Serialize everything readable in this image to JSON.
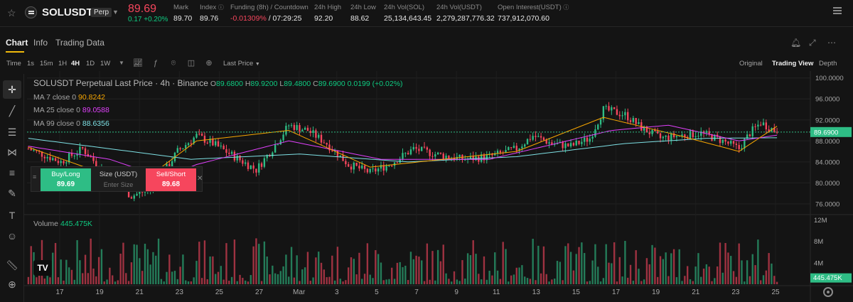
{
  "ticker": {
    "symbol": "SOLUSDT",
    "contract_badge": "Perp",
    "last_price": "89.69",
    "change": "0.17 +0.20%",
    "stats": [
      {
        "label": "Mark",
        "value": "89.70"
      },
      {
        "label": "Index",
        "value": "89.76"
      },
      {
        "label": "Funding (8h) / Countdown",
        "value_rate": "-0.01309%",
        "value_countdown": " / 07:29:25"
      },
      {
        "label": "24h High",
        "value": "92.20"
      },
      {
        "label": "24h Low",
        "value": "88.62"
      },
      {
        "label": "24h Vol(SOL)",
        "value": "25,134,643.45"
      },
      {
        "label": "24h Vol(USDT)",
        "value": "2,279,287,776.32"
      },
      {
        "label": "Open Interest(USDT)",
        "value": "737,912,070.60"
      }
    ]
  },
  "tabs": [
    "Chart",
    "Info",
    "Trading Data"
  ],
  "toolbar": {
    "time_label": "Time",
    "intervals": [
      "1s",
      "15m",
      "1H",
      "4H",
      "1D",
      "1W"
    ],
    "active_interval": "4H",
    "price_type": "Last Price",
    "views": [
      "Original",
      "Trading View",
      "Depth"
    ],
    "active_view": "Trading View"
  },
  "legend": {
    "title": "SOLUSDT Perpetual Last Price · 4h · Binance",
    "ohlc": {
      "o": "89.6800",
      "h": "89.9200",
      "l": "89.4800",
      "c": "89.6900",
      "chg": "0.0199 (+0.02%)"
    },
    "ma7": {
      "label": "MA 7 close 0",
      "value": "90.8242"
    },
    "ma25": {
      "label": "MA 25 close 0",
      "value": "89.0588"
    },
    "ma99": {
      "label": "MA 99 close 0",
      "value": "88.6356"
    },
    "volume": {
      "label": "Volume",
      "value": "445.475K"
    }
  },
  "order_panel": {
    "buy_label": "Buy/Long",
    "buy_price": "89.69",
    "size_label": "Size (USDT)",
    "size_placeholder": "Enter Size",
    "sell_label": "Sell/Short",
    "sell_price": "89.68"
  },
  "colors": {
    "up": "#2ebd85",
    "down": "#f6465d",
    "ma7": "#f7a600",
    "ma25": "#e040fb",
    "ma99": "#7ee0e4"
  },
  "chart_data": {
    "type": "candlestick",
    "price_axis": {
      "ticks": [
        100,
        96,
        92,
        88,
        84,
        80,
        76
      ],
      "labels": [
        "100.0000",
        "96.0000",
        "92.0000",
        "88.0000",
        "84.0000",
        "80.0000",
        "76.0000"
      ],
      "ylim": [
        74.5,
        100.5
      ]
    },
    "current_price_label": "89.6900",
    "volume_axis": {
      "ticks": [
        12,
        8,
        4
      ],
      "labels": [
        "12M",
        "8M",
        "4M"
      ],
      "current_label": "445.475K"
    },
    "x_ticks": [
      "17",
      "19",
      "21",
      "23",
      "25",
      "27",
      "Mar",
      "3",
      "5",
      "7",
      "9",
      "11",
      "13",
      "15",
      "17",
      "19",
      "21",
      "23",
      "25"
    ],
    "close_anchors": [
      [
        0,
        86.5
      ],
      [
        5,
        85.5
      ],
      [
        12,
        84.0
      ],
      [
        20,
        86.5
      ],
      [
        28,
        82.0
      ],
      [
        38,
        77.5
      ],
      [
        46,
        79.0
      ],
      [
        55,
        86.0
      ],
      [
        62,
        89.0
      ],
      [
        68,
        87.5
      ],
      [
        76,
        85.0
      ],
      [
        84,
        82.5
      ],
      [
        90,
        86.5
      ],
      [
        96,
        91.0
      ],
      [
        103,
        90.0
      ],
      [
        110,
        87.5
      ],
      [
        118,
        83.5
      ],
      [
        126,
        82.0
      ],
      [
        133,
        83.5
      ],
      [
        142,
        86.5
      ],
      [
        150,
        85.5
      ],
      [
        160,
        84.5
      ],
      [
        170,
        85.0
      ],
      [
        180,
        86.5
      ],
      [
        186,
        89.0
      ],
      [
        193,
        87.5
      ],
      [
        200,
        87.0
      ],
      [
        207,
        88.5
      ],
      [
        212,
        94.0
      ],
      [
        220,
        93.0
      ],
      [
        226,
        90.5
      ],
      [
        233,
        88.5
      ],
      [
        240,
        89.0
      ],
      [
        248,
        89.5
      ],
      [
        256,
        88.0
      ],
      [
        262,
        86.5
      ],
      [
        266,
        89.5
      ],
      [
        270,
        91.5
      ],
      [
        276,
        89.7
      ]
    ],
    "ma7_sample": [
      [
        0,
        86.8
      ],
      [
        40,
        79.5
      ],
      [
        62,
        88.0
      ],
      [
        96,
        90.0
      ],
      [
        126,
        83.0
      ],
      [
        180,
        86.0
      ],
      [
        212,
        92.5
      ],
      [
        240,
        89.0
      ],
      [
        262,
        86.0
      ],
      [
        276,
        90.8
      ]
    ],
    "ma25_sample": [
      [
        0,
        87.0
      ],
      [
        30,
        84.5
      ],
      [
        50,
        81.0
      ],
      [
        62,
        83.5
      ],
      [
        96,
        88.0
      ],
      [
        130,
        84.5
      ],
      [
        170,
        84.5
      ],
      [
        215,
        90.0
      ],
      [
        236,
        91.0
      ],
      [
        262,
        88.0
      ],
      [
        276,
        89.1
      ]
    ],
    "ma99_sample": [
      [
        0,
        88.5
      ],
      [
        30,
        86.5
      ],
      [
        60,
        84.5
      ],
      [
        100,
        85.5
      ],
      [
        140,
        84.0
      ],
      [
        180,
        85.0
      ],
      [
        220,
        87.5
      ],
      [
        250,
        88.5
      ],
      [
        276,
        88.6
      ]
    ],
    "volume_range_m": [
      0.5,
      11.8
    ],
    "last_volume": 0.445
  }
}
